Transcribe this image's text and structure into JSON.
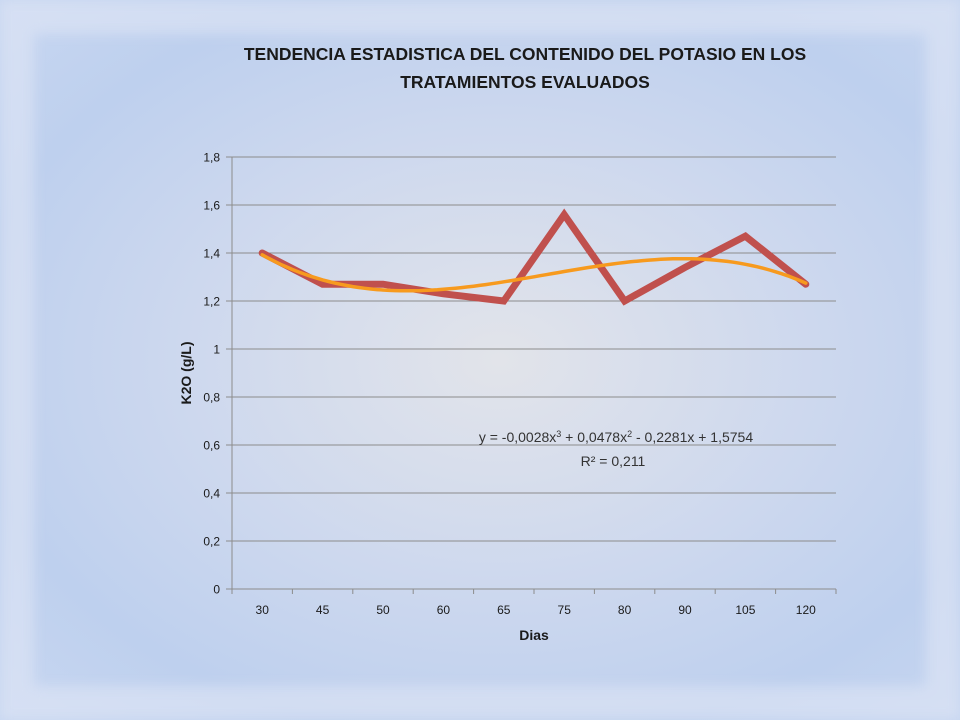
{
  "chart_data": {
    "type": "line",
    "title_lines": [
      "TENDENCIA ESTADISTICA DEL CONTENIDO DEL POTASIO EN LOS",
      "TRATAMIENTOS EVALUADOS"
    ],
    "xlabel": "Dias",
    "ylabel": "K2O (g/L)",
    "categories": [
      "30",
      "45",
      "50",
      "60",
      "65",
      "75",
      "80",
      "90",
      "105",
      "120"
    ],
    "y_ticks": [
      "0",
      "0,2",
      "0,4",
      "0,6",
      "0,8",
      "1",
      "1,2",
      "1,4",
      "1,6",
      "1,8"
    ],
    "ylim": [
      0,
      1.8
    ],
    "grid": true,
    "legend": "none",
    "series": [
      {
        "values": [
          1.4,
          1.27,
          1.27,
          1.23,
          1.2,
          1.56,
          1.2,
          1.34,
          1.47,
          1.27
        ],
        "color": "#c0504d"
      }
    ],
    "trendline": {
      "type": "polynomial-3",
      "color": "#f79a1e",
      "coefficients": [
        -0.0028,
        0.0478,
        -0.2281,
        1.5754
      ],
      "equation": "y = -0,0028x3 + 0,0478x2 - 0,2281x + 1,5754",
      "r_squared": "R² = 0,211"
    }
  }
}
